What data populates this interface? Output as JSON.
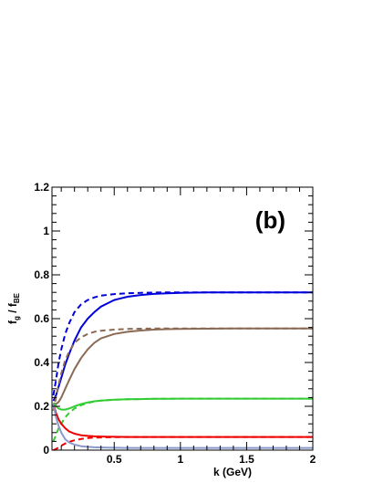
{
  "chart_data": {
    "type": "line",
    "panel_label": "(b)",
    "xlabel": "k (GeV)",
    "ylabel": {
      "main": "f",
      "sub1": "g",
      "sep": " / f",
      "sub2": "BE"
    },
    "xlim": [
      0.03,
      2.0
    ],
    "ylim": [
      0.0,
      1.2
    ],
    "x_ticks": [
      {
        "v": 0.5,
        "t": "0.5"
      },
      {
        "v": 1.0,
        "t": "1"
      },
      {
        "v": 1.5,
        "t": "1.5"
      },
      {
        "v": 2.0,
        "t": "2"
      }
    ],
    "y_ticks": [
      {
        "v": 0,
        "t": "0"
      },
      {
        "v": 0.2,
        "t": "0.2"
      },
      {
        "v": 0.4,
        "t": "0.4"
      },
      {
        "v": 0.6,
        "t": "0.6"
      },
      {
        "v": 0.8,
        "t": "0.8"
      },
      {
        "v": 1.0,
        "t": "1"
      },
      {
        "v": 1.2,
        "t": "1.2"
      }
    ],
    "grid": false,
    "x": [
      0.04,
      0.06,
      0.08,
      0.1,
      0.13,
      0.16,
      0.2,
      0.25,
      0.3,
      0.35,
      0.4,
      0.5,
      0.6,
      0.7,
      0.8,
      0.9,
      1.0,
      1.2,
      1.4,
      1.6,
      1.8,
      2.0
    ],
    "series": [
      {
        "color": "#0000dd",
        "dash": false,
        "values": [
          0.225,
          0.25,
          0.29,
          0.33,
          0.39,
          0.44,
          0.5,
          0.56,
          0.6,
          0.63,
          0.655,
          0.685,
          0.7,
          0.708,
          0.713,
          0.716,
          0.718,
          0.72,
          0.72,
          0.72,
          0.72,
          0.72
        ]
      },
      {
        "color": "#0000dd",
        "dash": true,
        "values": [
          0.25,
          0.32,
          0.4,
          0.46,
          0.53,
          0.58,
          0.63,
          0.665,
          0.685,
          0.697,
          0.705,
          0.712,
          0.716,
          0.718,
          0.719,
          0.72,
          0.72,
          0.72,
          0.72,
          0.72,
          0.72,
          0.72
        ]
      },
      {
        "color": "#8b6a55",
        "dash": false,
        "values": [
          0.215,
          0.21,
          0.22,
          0.24,
          0.28,
          0.32,
          0.37,
          0.42,
          0.46,
          0.49,
          0.51,
          0.53,
          0.54,
          0.546,
          0.55,
          0.552,
          0.553,
          0.554,
          0.555,
          0.555,
          0.555,
          0.555
        ]
      },
      {
        "color": "#8b6a55",
        "dash": true,
        "values": [
          0.18,
          0.24,
          0.3,
          0.35,
          0.41,
          0.45,
          0.49,
          0.515,
          0.53,
          0.54,
          0.545,
          0.55,
          0.553,
          0.554,
          0.555,
          0.555,
          0.555,
          0.555,
          0.555,
          0.555,
          0.555,
          0.555
        ]
      },
      {
        "color": "#33cc33",
        "dash": false,
        "values": [
          0.215,
          0.2,
          0.19,
          0.185,
          0.185,
          0.19,
          0.2,
          0.21,
          0.218,
          0.223,
          0.226,
          0.23,
          0.232,
          0.233,
          0.234,
          0.234,
          0.235,
          0.235,
          0.235,
          0.235,
          0.235,
          0.235
        ]
      },
      {
        "color": "#33cc33",
        "dash": true,
        "values": [
          0.04,
          0.07,
          0.1,
          0.12,
          0.15,
          0.17,
          0.19,
          0.205,
          0.215,
          0.222,
          0.226,
          0.23,
          0.232,
          0.233,
          0.234,
          0.234,
          0.235,
          0.235,
          0.235,
          0.235,
          0.235,
          0.235
        ]
      },
      {
        "color": "#ee0000",
        "dash": false,
        "values": [
          0.21,
          0.17,
          0.14,
          0.12,
          0.1,
          0.085,
          0.075,
          0.068,
          0.065,
          0.063,
          0.062,
          0.061,
          0.06,
          0.06,
          0.06,
          0.06,
          0.06,
          0.06,
          0.06,
          0.06,
          0.06,
          0.06
        ]
      },
      {
        "color": "#ee0000",
        "dash": true,
        "values": [
          0.0,
          0.005,
          0.012,
          0.02,
          0.03,
          0.038,
          0.045,
          0.051,
          0.055,
          0.057,
          0.058,
          0.059,
          0.06,
          0.06,
          0.06,
          0.06,
          0.06,
          0.06,
          0.06,
          0.06,
          0.06,
          0.06
        ]
      },
      {
        "color": "#8899cc",
        "dash": false,
        "values": [
          0.21,
          0.15,
          0.11,
          0.08,
          0.05,
          0.035,
          0.025,
          0.018,
          0.015,
          0.013,
          0.012,
          0.011,
          0.01,
          0.01,
          0.01,
          0.01,
          0.01,
          0.01,
          0.01,
          0.01,
          0.01,
          0.01
        ]
      }
    ]
  }
}
